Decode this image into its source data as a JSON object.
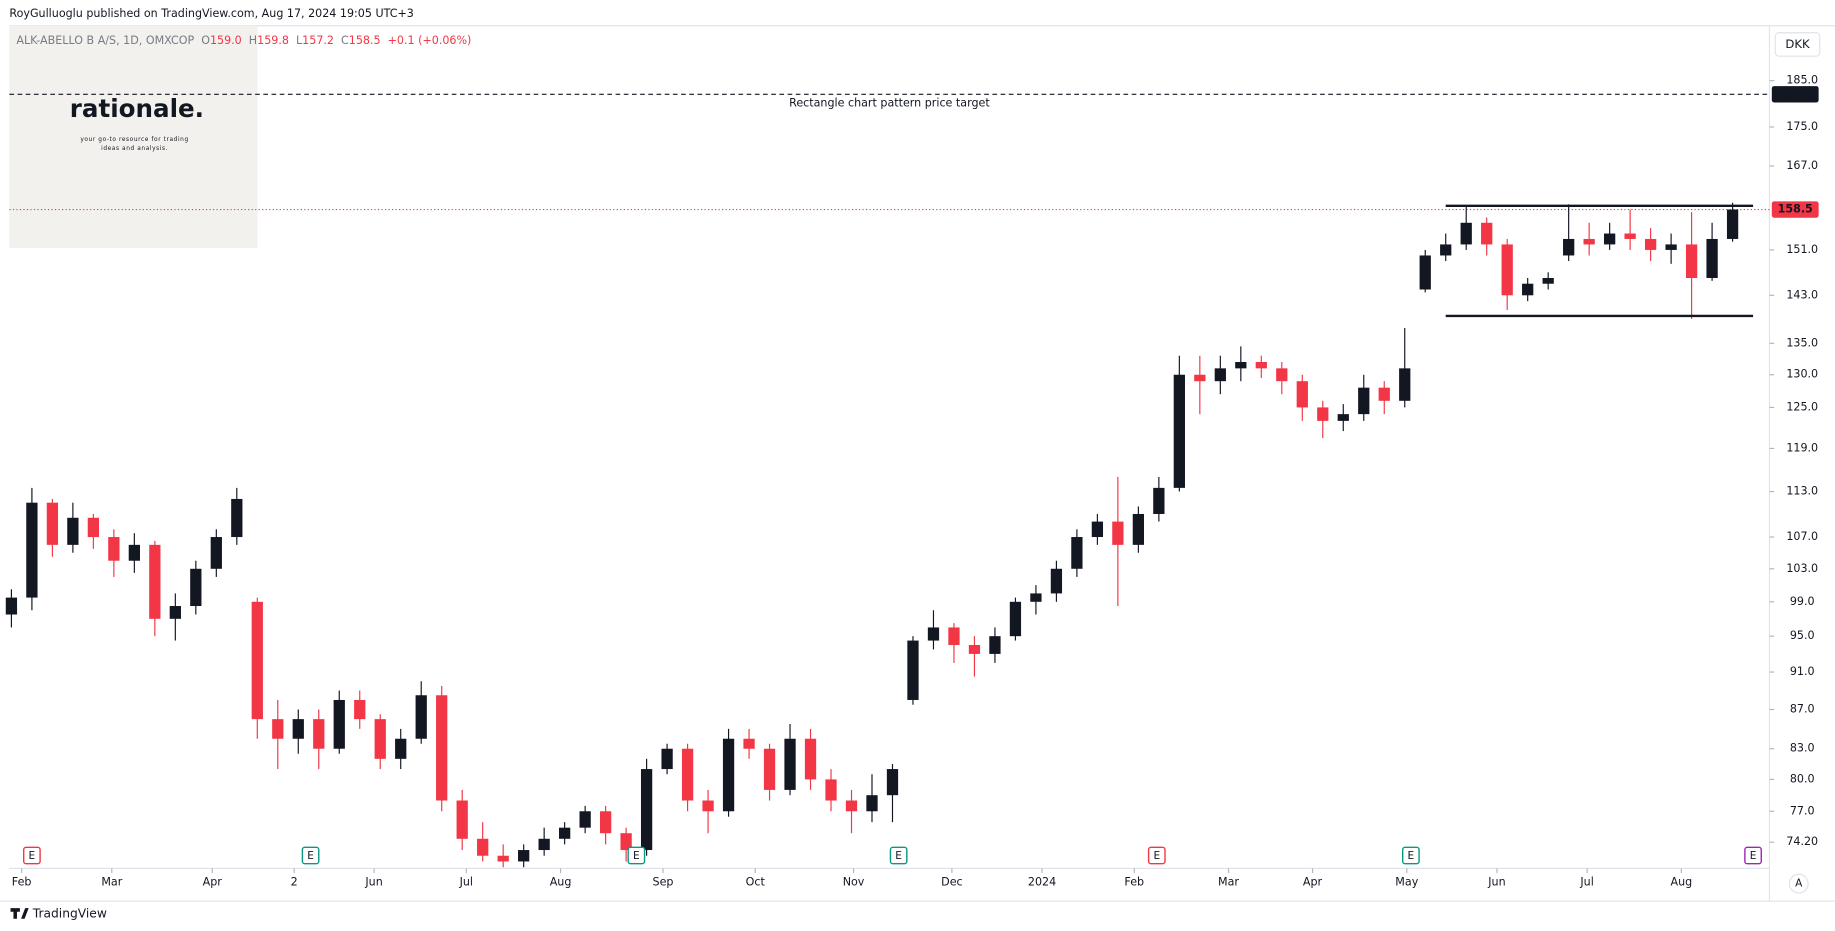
{
  "chart_data": {
    "type": "candlestick",
    "header": "RoyGulluoglu published on TradingView.com, Aug 17, 2024 19:05 UTC+3",
    "symbol": "ALK-ABELLO B A/S, 1D, OMXCOP",
    "legend": [
      {
        "key": "O",
        "val": "159.0"
      },
      {
        "key": "H",
        "val": "159.8"
      },
      {
        "key": "L",
        "val": "157.2"
      },
      {
        "key": "C",
        "val": "158.5"
      }
    ],
    "change": "+0.1 (+0.06%)",
    "currency": "DKK",
    "logo": {
      "title": "rationale.",
      "tagline": [
        "your go-to resource for trading",
        "ideas and analysis."
      ]
    },
    "footer": "TradingView",
    "axis_button": "A",
    "log": true,
    "up_color": "#131722",
    "down_color": "#f23645",
    "ylim": [
      71.9,
      197.6
    ],
    "yticks": [
      {
        "value": 185,
        "label": "185.0"
      },
      {
        "value": 175,
        "label": "175.0"
      },
      {
        "value": 167,
        "label": "167.0"
      },
      {
        "value": 151,
        "label": "151.0"
      },
      {
        "value": 143,
        "label": "143.0"
      },
      {
        "value": 135,
        "label": "135.0"
      },
      {
        "value": 130,
        "label": "130.0"
      },
      {
        "value": 125,
        "label": "125.0"
      },
      {
        "value": 119,
        "label": "119.0"
      },
      {
        "value": 113,
        "label": "113.0"
      },
      {
        "value": 107,
        "label": "107.0"
      },
      {
        "value": 103,
        "label": "103.0"
      },
      {
        "value": 99,
        "label": "99.0"
      },
      {
        "value": 95,
        "label": "95.0"
      },
      {
        "value": 91,
        "label": "91.0"
      },
      {
        "value": 87,
        "label": "87.0"
      },
      {
        "value": 83,
        "label": "83.0"
      },
      {
        "value": 80,
        "label": "80.0"
      },
      {
        "value": 77,
        "label": "77.0"
      },
      {
        "value": 74.2,
        "label": "74.20"
      }
    ],
    "xlim": [
      -0.1,
      85.8
    ],
    "xticks": [
      {
        "value": 0.5,
        "label": "Feb"
      },
      {
        "value": 4.9,
        "label": "Mar"
      },
      {
        "value": 9.8,
        "label": "Apr"
      },
      {
        "value": 13.8,
        "label": "2"
      },
      {
        "value": 17.7,
        "label": "Jun"
      },
      {
        "value": 22.2,
        "label": "Jul"
      },
      {
        "value": 26.8,
        "label": "Aug"
      },
      {
        "value": 31.8,
        "label": "Sep"
      },
      {
        "value": 36.3,
        "label": "Oct"
      },
      {
        "value": 41.1,
        "label": "Nov"
      },
      {
        "value": 45.9,
        "label": "Dec"
      },
      {
        "value": 50.3,
        "label": "2024"
      },
      {
        "value": 54.8,
        "label": "Feb"
      },
      {
        "value": 59.4,
        "label": "Mar"
      },
      {
        "value": 63.5,
        "label": "Apr"
      },
      {
        "value": 68.1,
        "label": "May"
      },
      {
        "value": 72.5,
        "label": "Jun"
      },
      {
        "value": 76.9,
        "label": "Jul"
      },
      {
        "value": 81.5,
        "label": "Aug"
      }
    ],
    "ohlc": [
      [
        97.5,
        100.5,
        96,
        99.5
      ],
      [
        99.5,
        113.5,
        98,
        111.5
      ],
      [
        111.5,
        112,
        104.5,
        106
      ],
      [
        106,
        111.5,
        105,
        109.5
      ],
      [
        109.5,
        110,
        105.5,
        107
      ],
      [
        107,
        108,
        102,
        104
      ],
      [
        104,
        107.5,
        102.5,
        106
      ],
      [
        106,
        106.5,
        95,
        97
      ],
      [
        97,
        100,
        94.5,
        98.5
      ],
      [
        98.5,
        104,
        97.5,
        103
      ],
      [
        103,
        108,
        102,
        107
      ],
      [
        107,
        113.5,
        106,
        112
      ],
      [
        99,
        99.5,
        84,
        86
      ],
      [
        86,
        88,
        81,
        84
      ],
      [
        84,
        87,
        82.5,
        86
      ],
      [
        86,
        87,
        81,
        83
      ],
      [
        83,
        89,
        82.5,
        88
      ],
      [
        88,
        89,
        85,
        86
      ],
      [
        86,
        86.5,
        81,
        82
      ],
      [
        82,
        85,
        81,
        84
      ],
      [
        84,
        90,
        83.5,
        88.5
      ],
      [
        88.5,
        89.5,
        77,
        78
      ],
      [
        78,
        79,
        73.5,
        74.5
      ],
      [
        74.5,
        76,
        72.5,
        73
      ],
      [
        73,
        74,
        72,
        72.5
      ],
      [
        72.5,
        74,
        72,
        73.5
      ],
      [
        73.5,
        75.5,
        73,
        74.5
      ],
      [
        74.5,
        76,
        74,
        75.5
      ],
      [
        75.5,
        77.5,
        75,
        77
      ],
      [
        77,
        77.5,
        74,
        75
      ],
      [
        75,
        75.5,
        72.5,
        73.5
      ],
      [
        73.5,
        82,
        73,
        81
      ],
      [
        81,
        83.5,
        80.5,
        83
      ],
      [
        83,
        83.5,
        77,
        78
      ],
      [
        78,
        79,
        75,
        77
      ],
      [
        77,
        85,
        76.5,
        84
      ],
      [
        84,
        85,
        82,
        83
      ],
      [
        83,
        83.5,
        78,
        79
      ],
      [
        79,
        85.5,
        78.5,
        84
      ],
      [
        84,
        85,
        79,
        80
      ],
      [
        80,
        81,
        77,
        78
      ],
      [
        78,
        79,
        75,
        77
      ],
      [
        77,
        80.5,
        76,
        78.5
      ],
      [
        78.5,
        81.5,
        76,
        81
      ],
      [
        88,
        95,
        87.5,
        94.5
      ],
      [
        94.5,
        98,
        93.5,
        96
      ],
      [
        96,
        96.5,
        92,
        94
      ],
      [
        94,
        95,
        90.5,
        93
      ],
      [
        93,
        96,
        92,
        95
      ],
      [
        95,
        99.5,
        94.5,
        99
      ],
      [
        99,
        101,
        97.5,
        100
      ],
      [
        100,
        104,
        99,
        103
      ],
      [
        103,
        108,
        102,
        107
      ],
      [
        107,
        110,
        106,
        109
      ],
      [
        109,
        115,
        98.5,
        106
      ],
      [
        106,
        111,
        105,
        110
      ],
      [
        110,
        115,
        109,
        113.5
      ],
      [
        113.5,
        133,
        113,
        130
      ],
      [
        130,
        133,
        124,
        129
      ],
      [
        129,
        133,
        127,
        131
      ],
      [
        131,
        134.5,
        129,
        132
      ],
      [
        132,
        133,
        129.5,
        131
      ],
      [
        131,
        132,
        127,
        129
      ],
      [
        129,
        130,
        123,
        125
      ],
      [
        125,
        126,
        120.5,
        123
      ],
      [
        123,
        125.5,
        121.5,
        124
      ],
      [
        124,
        130,
        123,
        128
      ],
      [
        128,
        129,
        124,
        126
      ],
      [
        126,
        137.5,
        125,
        131
      ],
      [
        144,
        151,
        143.5,
        150
      ],
      [
        150,
        154,
        149,
        152
      ],
      [
        152,
        159,
        151,
        156
      ],
      [
        156,
        157,
        150,
        152
      ],
      [
        152,
        153,
        140.5,
        143
      ],
      [
        143,
        146,
        142,
        145
      ],
      [
        145,
        147,
        144,
        146
      ],
      [
        150,
        159.5,
        149,
        153
      ],
      [
        153,
        156,
        150,
        152
      ],
      [
        152,
        156,
        151,
        154
      ],
      [
        154,
        158.5,
        151,
        153
      ],
      [
        153,
        155,
        149,
        151
      ],
      [
        151,
        154,
        148.5,
        152
      ],
      [
        152,
        158,
        139,
        146
      ],
      [
        146,
        156,
        145.5,
        153
      ],
      [
        153,
        159.8,
        152.5,
        158.5
      ]
    ],
    "last_price": {
      "value": 158.5,
      "label": "158.5"
    },
    "target": {
      "value": 182,
      "label": "182.0",
      "text": "Rectangle chart pattern price target"
    },
    "rectangle": {
      "top": 159.2,
      "bottom": 139.5,
      "x": [
        70,
        85
      ]
    },
    "events": [
      {
        "x": 1.0,
        "label": "E",
        "color": "#f23645"
      },
      {
        "x": 14.6,
        "label": "E",
        "color": "#089981"
      },
      {
        "x": 30.5,
        "label": "E",
        "color": "#089981"
      },
      {
        "x": 43.3,
        "label": "E",
        "color": "#089981"
      },
      {
        "x": 55.9,
        "label": "E",
        "color": "#f23645"
      },
      {
        "x": 68.3,
        "label": "E",
        "color": "#089981"
      },
      {
        "x": 85.0,
        "label": "E",
        "color": "#9c27b0"
      }
    ]
  }
}
